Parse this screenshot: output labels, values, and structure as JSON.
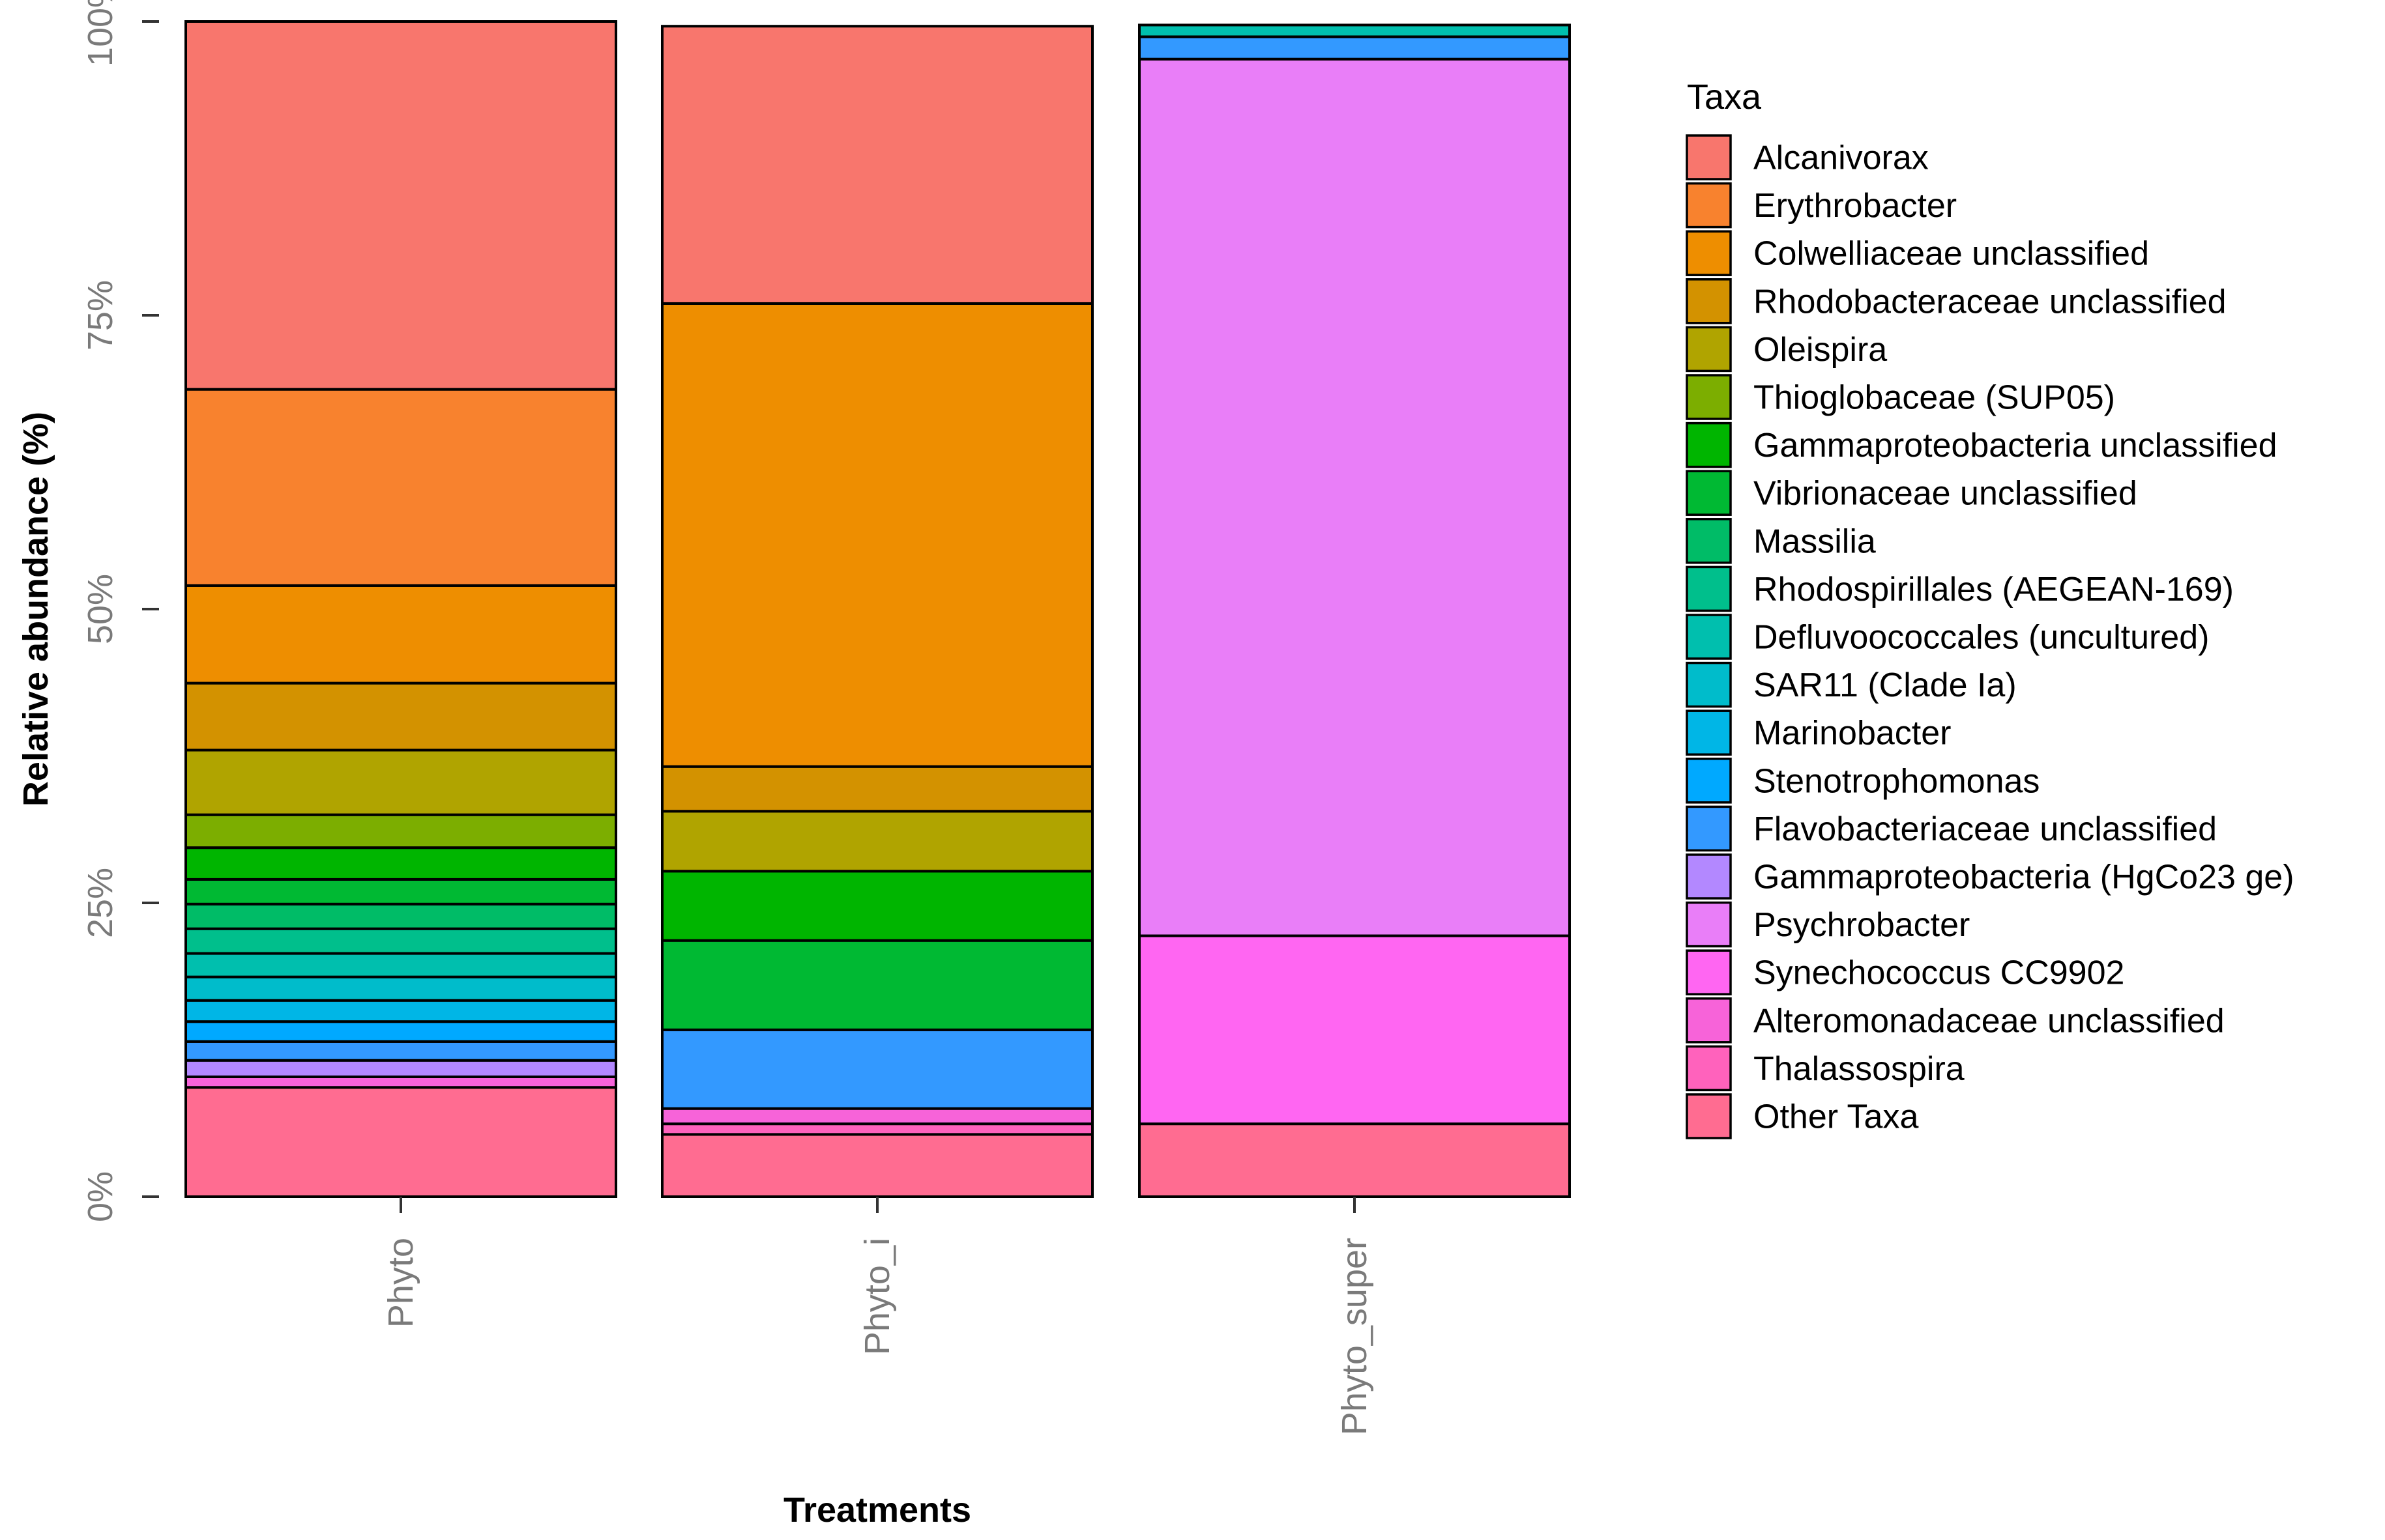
{
  "chart_data": {
    "type": "stacked-bar",
    "xlabel": "Treatments",
    "ylabel": "Relative abundance (%)",
    "ylim": [
      0,
      100
    ],
    "yticks": [
      {
        "value": 0,
        "label": "0%"
      },
      {
        "value": 25,
        "label": "25%"
      },
      {
        "value": 50,
        "label": "50%"
      },
      {
        "value": 75,
        "label": "75%"
      },
      {
        "value": 100,
        "label": "100%"
      }
    ],
    "categories": [
      "Phyto",
      "Phyto_i",
      "Phyto_super"
    ],
    "legend": {
      "title": "Taxa",
      "placement": "right"
    },
    "grid": false,
    "series": [
      {
        "name": "Alcanivorax",
        "color": "#F8766D",
        "values": [
          31.3,
          23.6,
          0
        ]
      },
      {
        "name": "Erythrobacter",
        "color": "#F8822E",
        "values": [
          16.7,
          0,
          0
        ]
      },
      {
        "name": "Colwelliaceae unclassified",
        "color": "#EE8E00",
        "values": [
          8.3,
          39.4,
          0
        ]
      },
      {
        "name": "Rhodobacteraceae unclassified",
        "color": "#D39200",
        "values": [
          5.7,
          3.8,
          0
        ]
      },
      {
        "name": "Oleispira",
        "color": "#B0A400",
        "values": [
          5.5,
          5.1,
          0
        ]
      },
      {
        "name": "Thioglobaceae (SUP05)",
        "color": "#7CAE00",
        "values": [
          2.8,
          0,
          0
        ]
      },
      {
        "name": "Gammaproteobacteria unclassified",
        "color": "#00B500",
        "values": [
          2.7,
          5.9,
          0
        ]
      },
      {
        "name": "Vibrionaceae unclassified",
        "color": "#00B933",
        "values": [
          2.1,
          7.6,
          0
        ]
      },
      {
        "name": "Massilia",
        "color": "#00BC67",
        "values": [
          2.1,
          0,
          0
        ]
      },
      {
        "name": "Rhodospirillales (AEGEAN-169)",
        "color": "#00BF8C",
        "values": [
          2.1,
          0,
          0
        ]
      },
      {
        "name": "Defluvoococcales (uncultured)",
        "color": "#00BFAE",
        "values": [
          2.0,
          0,
          1.0
        ]
      },
      {
        "name": "SAR11 (Clade Ia)",
        "color": "#00BCCB",
        "values": [
          2.0,
          0,
          0
        ]
      },
      {
        "name": "Marinobacter",
        "color": "#00B6E6",
        "values": [
          1.8,
          0,
          0
        ]
      },
      {
        "name": "Stenotrophomonas",
        "color": "#00A9FF",
        "values": [
          1.7,
          0,
          0
        ]
      },
      {
        "name": "Flavobacteriaceae unclassified",
        "color": "#3399FF",
        "values": [
          1.6,
          6.7,
          1.9
        ]
      },
      {
        "name": "Gammaproteobacteria (HgCo23 ge)",
        "color": "#B388FF",
        "values": [
          1.4,
          0,
          0
        ]
      },
      {
        "name": "Psychrobacter",
        "color": "#E97EF8",
        "values": [
          0,
          0,
          74.6
        ]
      },
      {
        "name": "Synechococcus CC9902",
        "color": "#FF66F2",
        "values": [
          0,
          0,
          16.0
        ]
      },
      {
        "name": "Alteromonadaceae unclassified",
        "color": "#F763D9",
        "values": [
          0.9,
          1.3,
          0
        ]
      },
      {
        "name": "Thalassospira",
        "color": "#FF62BC",
        "values": [
          0,
          0.9,
          0
        ]
      },
      {
        "name": "Other Taxa",
        "color": "#FF6C91",
        "values": [
          9.3,
          5.3,
          6.2
        ]
      }
    ]
  }
}
